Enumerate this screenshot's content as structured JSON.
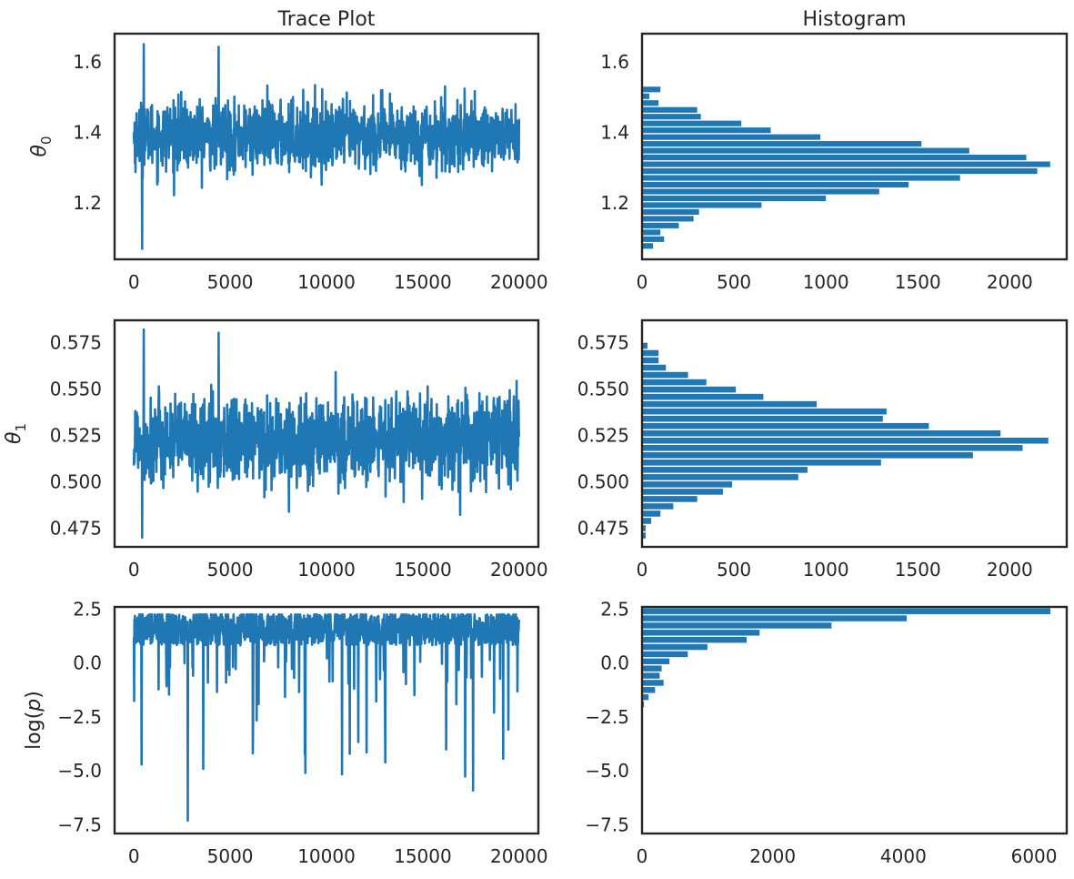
{
  "chart_data": [
    {
      "type": "line",
      "title": "Trace Plot",
      "ylabel": "θ0",
      "ylabel_main": "θ",
      "ylabel_sub": "0",
      "xlim": [
        -1000,
        21000
      ],
      "ylim": [
        1.04,
        1.68
      ],
      "xticks": [
        0,
        5000,
        10000,
        15000,
        20000
      ],
      "yticks": [
        1.2,
        1.4,
        1.6
      ],
      "ytick_labels": [
        "1.2",
        "1.4",
        "1.6"
      ],
      "series": [
        {
          "n": 20000,
          "center": 1.39,
          "spread": 0.048,
          "min": 1.07,
          "max": 1.65
        }
      ],
      "color": "#1f77b4"
    },
    {
      "type": "bar",
      "title": "Histogram",
      "orientation": "horizontal",
      "xlim": [
        0,
        2310
      ],
      "ylim": [
        1.04,
        1.68
      ],
      "xticks": [
        0,
        500,
        1000,
        1500,
        2000
      ],
      "yticks": [
        1.2,
        1.4,
        1.6
      ],
      "ytick_labels": [
        "1.2",
        "1.4",
        "1.6"
      ],
      "bin_start": 1.07,
      "bin_width": 0.0193,
      "counts": [
        60,
        120,
        100,
        200,
        280,
        310,
        650,
        1000,
        1290,
        1450,
        1730,
        2150,
        2220,
        2090,
        1780,
        1520,
        970,
        700,
        540,
        320,
        300,
        90,
        40,
        100
      ],
      "color": "#1f77b4"
    },
    {
      "type": "line",
      "ylabel": "θ1",
      "ylabel_main": "θ",
      "ylabel_sub": "1",
      "xlim": [
        -1000,
        21000
      ],
      "ylim": [
        0.465,
        0.587
      ],
      "xticks": [
        0,
        5000,
        10000,
        15000,
        20000
      ],
      "yticks": [
        0.475,
        0.5,
        0.525,
        0.55,
        0.575
      ],
      "ytick_labels": [
        "0.475",
        "0.500",
        "0.525",
        "0.550",
        "0.575"
      ],
      "series": [
        {
          "n": 20000,
          "center": 0.522,
          "spread": 0.0115,
          "min": 0.47,
          "max": 0.582
        }
      ],
      "color": "#1f77b4"
    },
    {
      "type": "bar",
      "orientation": "horizontal",
      "xlim": [
        0,
        2310
      ],
      "ylim": [
        0.465,
        0.587
      ],
      "xticks": [
        0,
        500,
        1000,
        1500,
        2000
      ],
      "yticks": [
        0.475,
        0.5,
        0.525,
        0.55,
        0.575
      ],
      "ytick_labels": [
        "0.475",
        "0.500",
        "0.525",
        "0.550",
        "0.575"
      ],
      "bin_start": 0.4695,
      "bin_width": 0.00393,
      "counts": [
        20,
        20,
        50,
        100,
        170,
        300,
        440,
        490,
        850,
        900,
        1300,
        1800,
        2070,
        2210,
        1950,
        1560,
        1310,
        1330,
        950,
        660,
        510,
        350,
        250,
        130,
        90,
        90,
        30
      ],
      "color": "#1f77b4"
    },
    {
      "type": "line",
      "ylabel": "log(p)",
      "ylabel_main": "log(",
      "ylabel_var": "p",
      "ylabel_end": ")",
      "xlim": [
        -1000,
        21000
      ],
      "ylim": [
        -7.9,
        2.6
      ],
      "xticks": [
        0,
        5000,
        10000,
        15000,
        20000
      ],
      "yticks": [
        -7.5,
        -5,
        -2.5,
        0,
        2.5
      ],
      "ytick_labels": [
        "−7.5",
        "−5.0",
        "−2.5",
        "0.0",
        "2.5"
      ],
      "series": [
        {
          "n": 20000,
          "center": 1.3,
          "spread": 0.9,
          "min": -7.3,
          "max": 2.25
        }
      ],
      "color": "#1f77b4"
    },
    {
      "type": "bar",
      "orientation": "horizontal",
      "xlim": [
        0,
        6500
      ],
      "ylim": [
        -7.9,
        2.6
      ],
      "xticks": [
        0,
        2000,
        4000,
        6000
      ],
      "yticks": [
        -7.5,
        -5,
        -2.5,
        0,
        2.5
      ],
      "ytick_labels": [
        "−7.5",
        "−5.0",
        "−2.5",
        "0.0",
        "2.5"
      ],
      "bin_start": -2.05,
      "bin_width": 0.332,
      "counts": [
        30,
        100,
        200,
        330,
        270,
        300,
        420,
        700,
        1000,
        1600,
        1800,
        2900,
        4050,
        6250
      ],
      "color": "#1f77b4"
    }
  ]
}
